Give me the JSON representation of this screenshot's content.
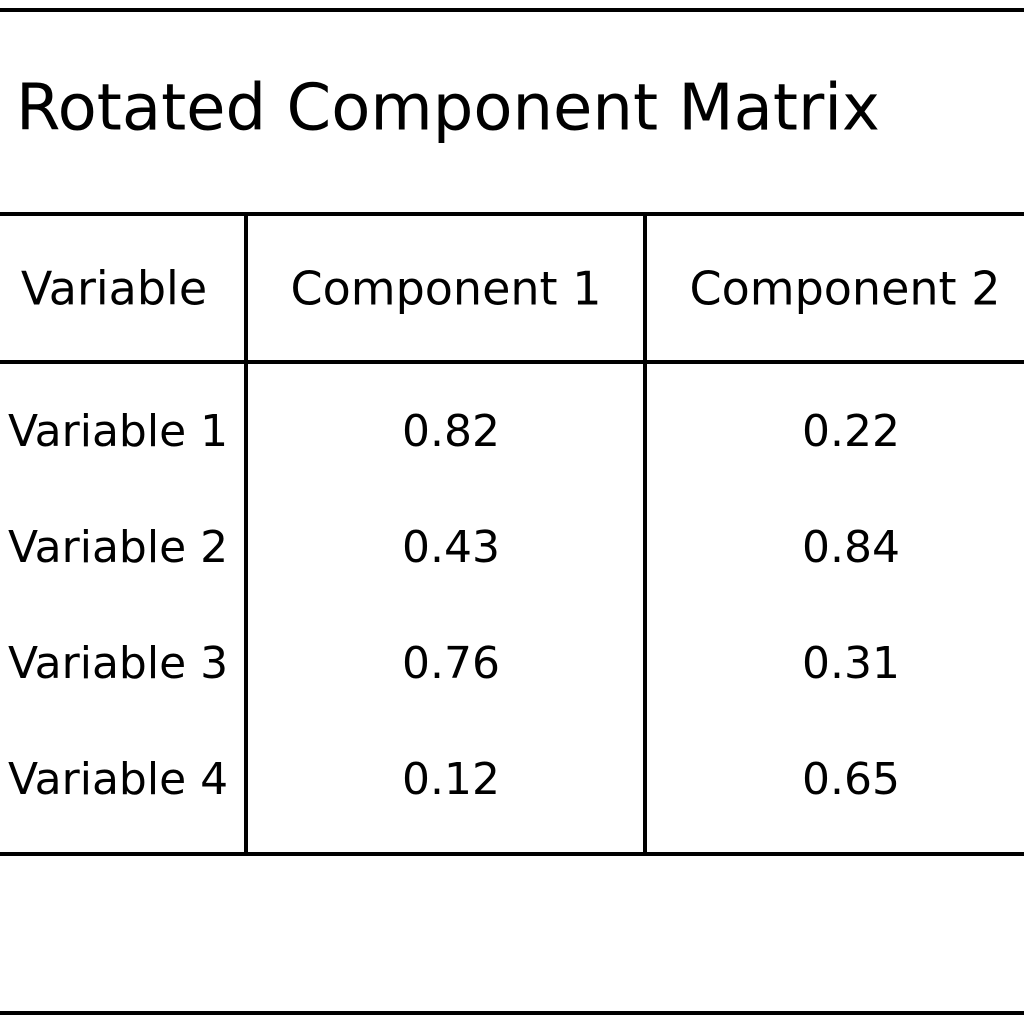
{
  "title": "Rotated Component Matrix",
  "table": {
    "columns": [
      "Variable",
      "Component 1",
      "Component 2"
    ],
    "rows": [
      [
        "Variable 1",
        0.82,
        0.22
      ],
      [
        "Variable 2",
        0.43,
        0.84
      ],
      [
        "Variable 3",
        0.76,
        0.31
      ],
      [
        "Variable 4",
        0.12,
        0.65
      ]
    ]
  }
}
